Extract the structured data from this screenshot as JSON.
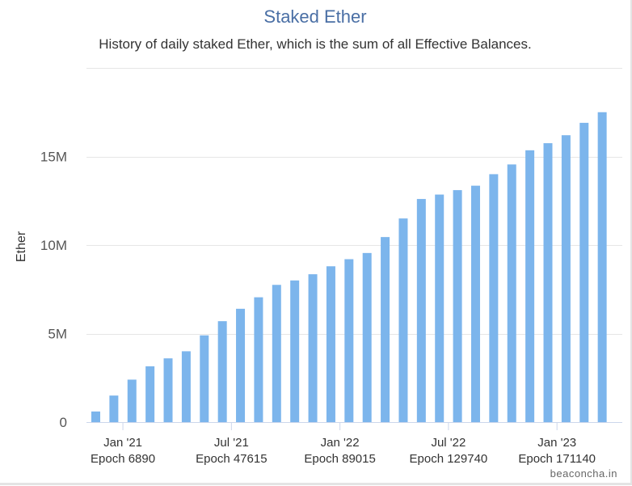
{
  "chart_data": {
    "type": "bar",
    "title": "Staked Ether",
    "subtitle": "History of daily staked Ether, which is the sum of all Effective Balances.",
    "xlabel": "",
    "ylabel": "Ether",
    "ylim": [
      0,
      20000000
    ],
    "y_ticks": [
      {
        "value": 0,
        "label": "0"
      },
      {
        "value": 5000000,
        "label": "5M"
      },
      {
        "value": 10000000,
        "label": "10M"
      },
      {
        "value": 15000000,
        "label": "15M"
      }
    ],
    "x_ticks": [
      {
        "bar_index": 1.5,
        "date": "Jan '21",
        "epoch": "Epoch 6890"
      },
      {
        "bar_index": 7.5,
        "date": "Jul '21",
        "epoch": "Epoch 47615"
      },
      {
        "bar_index": 13.5,
        "date": "Jan '22",
        "epoch": "Epoch 89015"
      },
      {
        "bar_index": 19.5,
        "date": "Jul '22",
        "epoch": "Epoch 129740"
      },
      {
        "bar_index": 25.5,
        "date": "Jan '23",
        "epoch": "Epoch 171140"
      }
    ],
    "values": [
      600000,
      1500000,
      2400000,
      3150000,
      3600000,
      4000000,
      4900000,
      5700000,
      6400000,
      7050000,
      7750000,
      8000000,
      8350000,
      8800000,
      9200000,
      9550000,
      10450000,
      11500000,
      12600000,
      12850000,
      13100000,
      13350000,
      14000000,
      14550000,
      15350000,
      15750000,
      16200000,
      16900000,
      17500000
    ],
    "grid": true,
    "legend": "none",
    "bar_color": "#7cb5ec"
  },
  "credit": "beaconcha.in"
}
